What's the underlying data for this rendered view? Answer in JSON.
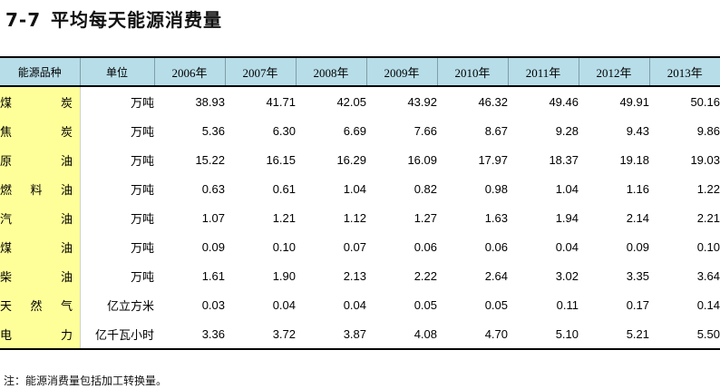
{
  "title": {
    "number": "7-7",
    "text": "平均每天能源消费量"
  },
  "table": {
    "headers": [
      "能源品种",
      "单位",
      "2006年",
      "2007年",
      "2008年",
      "2009年",
      "2010年",
      "2011年",
      "2012年",
      "2013年"
    ],
    "rows": [
      {
        "name": "煤炭",
        "unit": "万吨",
        "values": [
          "38.93",
          "41.71",
          "42.05",
          "43.92",
          "46.32",
          "49.46",
          "49.91",
          "50.16"
        ]
      },
      {
        "name": "焦炭",
        "unit": "万吨",
        "values": [
          "5.36",
          "6.30",
          "6.69",
          "7.66",
          "8.67",
          "9.28",
          "9.43",
          "9.86"
        ]
      },
      {
        "name": "原油",
        "unit": "万吨",
        "values": [
          "15.22",
          "16.15",
          "16.29",
          "16.09",
          "17.97",
          "18.37",
          "19.18",
          "19.03"
        ]
      },
      {
        "name": "燃料油",
        "unit": "万吨",
        "values": [
          "0.63",
          "0.61",
          "1.04",
          "0.82",
          "0.98",
          "1.04",
          "1.16",
          "1.22"
        ]
      },
      {
        "name": "汽油",
        "unit": "万吨",
        "values": [
          "1.07",
          "1.21",
          "1.12",
          "1.27",
          "1.63",
          "1.94",
          "2.14",
          "2.21"
        ]
      },
      {
        "name": "煤油",
        "unit": "万吨",
        "values": [
          "0.09",
          "0.10",
          "0.07",
          "0.06",
          "0.06",
          "0.04",
          "0.09",
          "0.10"
        ]
      },
      {
        "name": "柴油",
        "unit": "万吨",
        "values": [
          "1.61",
          "1.90",
          "2.13",
          "2.22",
          "2.64",
          "3.02",
          "3.35",
          "3.64"
        ]
      },
      {
        "name": "天然气",
        "unit": "亿立方米",
        "values": [
          "0.03",
          "0.04",
          "0.04",
          "0.05",
          "0.05",
          "0.11",
          "0.17",
          "0.14"
        ]
      },
      {
        "name": "电力",
        "unit": "亿千瓦小时",
        "values": [
          "3.36",
          "3.72",
          "3.87",
          "4.08",
          "4.70",
          "5.10",
          "5.21",
          "5.50"
        ]
      }
    ]
  },
  "note": "注：能源消费量包括加工转换量。",
  "colors": {
    "header_bg": "#b7dde8",
    "first_col_bg": "#ffff99"
  }
}
